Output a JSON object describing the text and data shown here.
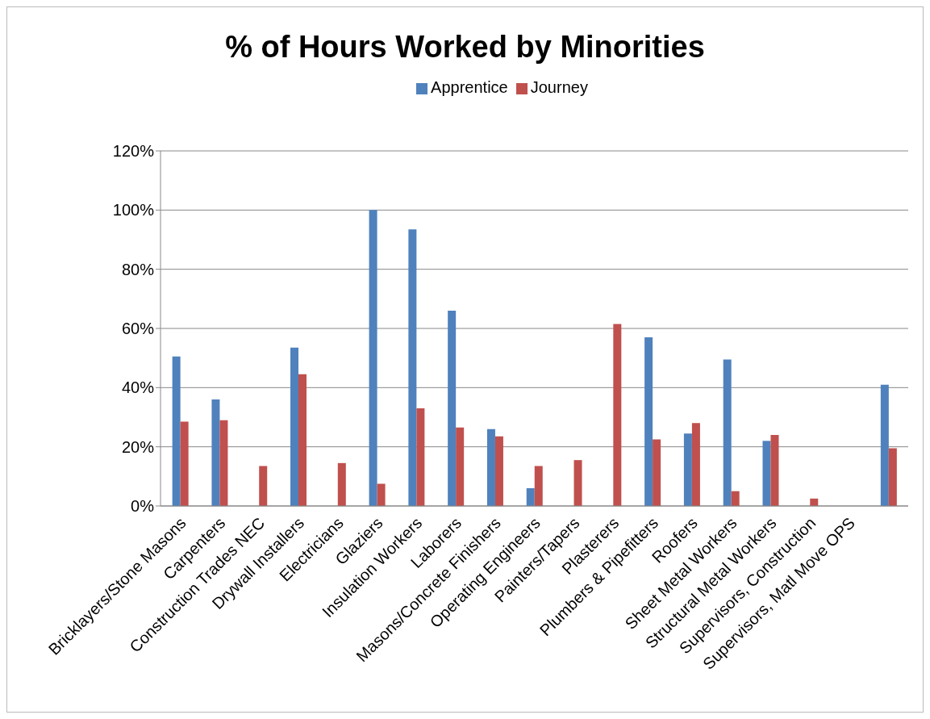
{
  "chart_data": {
    "type": "bar",
    "title": "% of Hours Worked by Minorities",
    "categories": [
      "Bricklayers/Stone Masons",
      "Carpenters",
      "Construction Trades NEC",
      "Drywall Installers",
      "Electricians",
      "Glaziers",
      "Insulation Workers",
      "Laborers",
      "Masons/Concrete Finishers",
      "Operating Engineers",
      "Painters/Tapers",
      "Plasterers",
      "Plumbers & Pipefitters",
      "Roofers",
      "Sheet Metal Workers",
      "Structural Metal Workers",
      "Supervisors, Construction",
      "Supervisors, Matl Move OPS",
      null
    ],
    "series": [
      {
        "name": "Apprentice",
        "color": "#4f81bd",
        "values": [
          50.5,
          36,
          0,
          53.5,
          0,
          100,
          93.5,
          66,
          26,
          6,
          0,
          0,
          57,
          24.5,
          49.5,
          22,
          0,
          0,
          41
        ]
      },
      {
        "name": "Journey",
        "color": "#c0504d",
        "values": [
          28.5,
          29,
          13.5,
          44.5,
          14.5,
          7.5,
          33,
          26.5,
          23.5,
          13.5,
          15.5,
          61.5,
          22.5,
          28,
          5,
          24,
          2.5,
          0,
          19.5
        ]
      }
    ],
    "ylim": [
      0,
      120
    ],
    "yticks": [
      {
        "value": 0,
        "label": "0%"
      },
      {
        "value": 20,
        "label": "20%"
      },
      {
        "value": 40,
        "label": "40%"
      },
      {
        "value": 60,
        "label": "60%"
      },
      {
        "value": 80,
        "label": "80%"
      },
      {
        "value": 100,
        "label": "100%"
      },
      {
        "value": 120,
        "label": "120%"
      }
    ],
    "grid": "y",
    "legend": "top"
  }
}
